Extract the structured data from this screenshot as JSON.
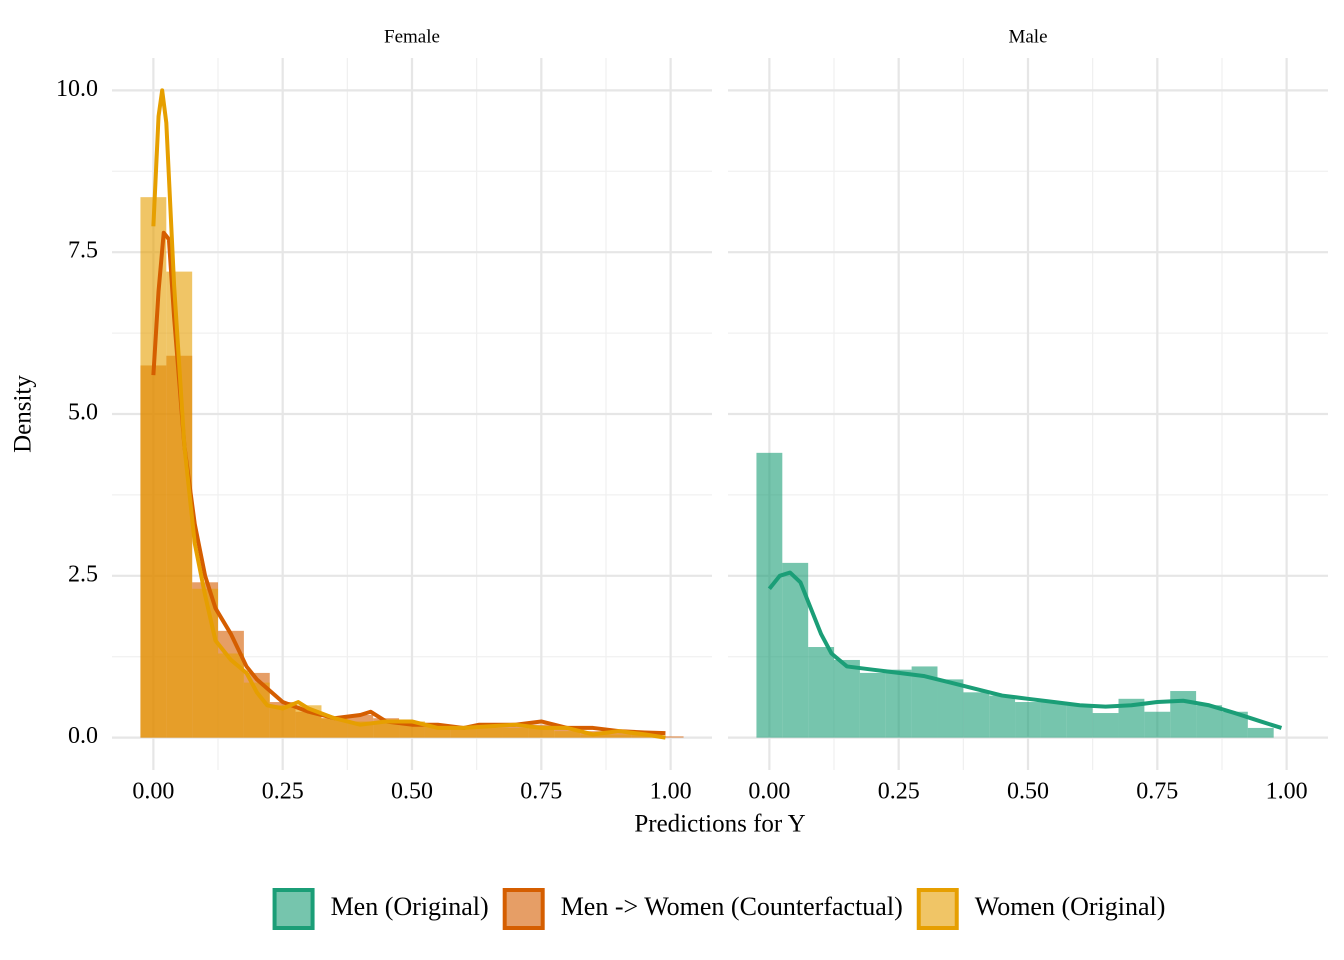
{
  "xlabel": "Predictions for Y",
  "ylabel": "Density",
  "legend_position": "bottom",
  "chart_data": [
    {
      "type": "histogram",
      "title": "Female",
      "grid": true,
      "minor_grid": true,
      "xlim": [
        -0.08,
        1.08
      ],
      "ylim": [
        -0.5,
        10.5
      ],
      "xticks": [
        {
          "value": 0,
          "label": "0.00"
        },
        {
          "value": 0.25,
          "label": "0.25"
        },
        {
          "value": 0.5,
          "label": "0.50"
        },
        {
          "value": 0.75,
          "label": "0.75"
        },
        {
          "value": 1,
          "label": "1.00"
        }
      ],
      "yticks": [
        {
          "value": 0,
          "label": "0.0"
        },
        {
          "value": 2.5,
          "label": "2.5"
        },
        {
          "value": 5,
          "label": "5.0"
        },
        {
          "value": 7.5,
          "label": "7.5"
        },
        {
          "value": 10,
          "label": "10.0"
        }
      ],
      "bins": [
        -0.025,
        0.025,
        0.075,
        0.125,
        0.175,
        0.225,
        0.275,
        0.325,
        0.375,
        0.425,
        0.475,
        0.525,
        0.575,
        0.625,
        0.675,
        0.725,
        0.775,
        0.825,
        0.875,
        0.925,
        0.975,
        1.025
      ],
      "series": [
        {
          "name": "Men -> Women (Counterfactual)",
          "color": "#D55E00",
          "values": [
            5.75,
            5.9,
            2.4,
            1.65,
            1.0,
            0.55,
            0.4,
            0.3,
            0.35,
            0.3,
            0.2,
            0.2,
            0.15,
            0.2,
            0.2,
            0.2,
            0.15,
            0.1,
            0.1,
            0.05,
            0.02
          ],
          "density_x": [
            0,
            0.01,
            0.02,
            0.03,
            0.04,
            0.06,
            0.08,
            0.1,
            0.12,
            0.15,
            0.18,
            0.2,
            0.25,
            0.3,
            0.35,
            0.4,
            0.42,
            0.45,
            0.5,
            0.55,
            0.6,
            0.63,
            0.7,
            0.75,
            0.8,
            0.85,
            0.9,
            0.95,
            0.99
          ],
          "density": [
            5.6,
            6.9,
            7.8,
            7.7,
            6.5,
            4.5,
            3.3,
            2.5,
            2.0,
            1.6,
            1.1,
            0.9,
            0.55,
            0.4,
            0.3,
            0.35,
            0.4,
            0.25,
            0.2,
            0.2,
            0.15,
            0.2,
            0.2,
            0.25,
            0.15,
            0.15,
            0.1,
            0.08,
            0.07
          ]
        },
        {
          "name": "Women (Original)",
          "color": "#E69F00",
          "values": [
            8.35,
            7.2,
            2.3,
            1.3,
            0.85,
            0.5,
            0.5,
            0.3,
            0.25,
            0.25,
            0.25,
            0.2,
            0.15,
            0.15,
            0.15,
            0.15,
            0.1,
            0.05,
            0.05,
            0.05,
            0
          ],
          "density_x": [
            0,
            0.01,
            0.017,
            0.025,
            0.04,
            0.06,
            0.08,
            0.1,
            0.12,
            0.15,
            0.18,
            0.2,
            0.22,
            0.25,
            0.28,
            0.3,
            0.35,
            0.4,
            0.45,
            0.5,
            0.55,
            0.6,
            0.7,
            0.75,
            0.8,
            0.85,
            0.9,
            0.95,
            0.99
          ],
          "density": [
            7.9,
            9.6,
            10.0,
            9.5,
            7.0,
            4.5,
            3.0,
            2.2,
            1.5,
            1.2,
            1.0,
            0.7,
            0.5,
            0.45,
            0.55,
            0.45,
            0.3,
            0.2,
            0.25,
            0.25,
            0.15,
            0.15,
            0.2,
            0.15,
            0.15,
            0.05,
            0.1,
            0.05,
            0.0
          ]
        }
      ]
    },
    {
      "type": "histogram",
      "title": "Male",
      "grid": true,
      "minor_grid": true,
      "xlim": [
        -0.08,
        1.08
      ],
      "ylim": [
        -0.5,
        10.5
      ],
      "xticks": [
        {
          "value": 0,
          "label": "0.00"
        },
        {
          "value": 0.25,
          "label": "0.25"
        },
        {
          "value": 0.5,
          "label": "0.50"
        },
        {
          "value": 0.75,
          "label": "0.75"
        },
        {
          "value": 1,
          "label": "1.00"
        }
      ],
      "yticks": [
        0,
        2.5,
        5,
        7.5,
        10
      ],
      "bins": [
        -0.025,
        0.025,
        0.075,
        0.125,
        0.175,
        0.225,
        0.275,
        0.325,
        0.375,
        0.425,
        0.475,
        0.525,
        0.575,
        0.625,
        0.675,
        0.725,
        0.775,
        0.825,
        0.875,
        0.925,
        0.975,
        1.025
      ],
      "series": [
        {
          "name": "Men (Original)",
          "color": "#1B9E77",
          "values": [
            4.4,
            2.7,
            1.4,
            1.2,
            1.0,
            1.05,
            1.1,
            0.9,
            0.7,
            0.65,
            0.55,
            0.55,
            0.5,
            0.38,
            0.6,
            0.4,
            0.72,
            0.5,
            0.4,
            0.15,
            0
          ],
          "density_x": [
            0,
            0.02,
            0.04,
            0.06,
            0.08,
            0.1,
            0.12,
            0.15,
            0.2,
            0.25,
            0.3,
            0.35,
            0.4,
            0.45,
            0.5,
            0.55,
            0.6,
            0.65,
            0.7,
            0.75,
            0.8,
            0.85,
            0.9,
            0.95,
            0.99
          ],
          "density": [
            2.3,
            2.5,
            2.55,
            2.4,
            2.0,
            1.6,
            1.3,
            1.1,
            1.05,
            1.0,
            0.95,
            0.85,
            0.75,
            0.65,
            0.6,
            0.55,
            0.5,
            0.48,
            0.5,
            0.55,
            0.57,
            0.5,
            0.38,
            0.25,
            0.15
          ]
        }
      ]
    }
  ]
}
